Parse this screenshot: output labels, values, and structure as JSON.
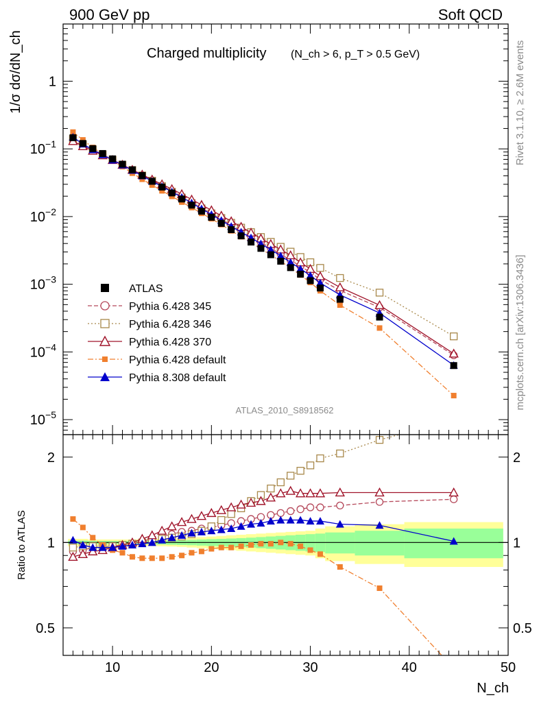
{
  "chart_data": {
    "type": "line",
    "header_left": "900 GeV pp",
    "header_right": "Soft QCD",
    "title_main": "Charged multiplicity",
    "title_sub": "(N_ch > 6, p_T > 0.5 GeV)",
    "ylabel": "1/σ dσ/dN_ch",
    "ratio_ylabel": "Ratio to ATLAS",
    "xlabel": "N_ch",
    "side_top": "Rivet 3.1.10, ≥ 2.6M events",
    "side_bottom": "mcplots.cern.ch [arXiv:1306.3436]",
    "analysis_tag": "ATLAS_2010_S8918562",
    "xlim": [
      5,
      50
    ],
    "ylim": [
      6e-06,
      7
    ],
    "yscale": "log",
    "ratio_ylim": [
      0.4,
      2.4
    ],
    "ratio_yscale": "log",
    "x_ticks": [
      10,
      20,
      30,
      40,
      50
    ],
    "y_ticks": [
      "10^-5",
      "10^-4",
      "10^-3",
      "10^-2",
      "10^-1",
      "1"
    ],
    "ratio_ticks": [
      0.5,
      1,
      2
    ],
    "x": [
      6,
      7,
      8,
      9,
      10,
      11,
      12,
      13,
      14,
      15,
      16,
      17,
      18,
      19,
      20,
      21,
      22,
      23,
      24,
      25,
      26,
      27,
      28,
      29,
      30,
      31,
      33,
      37,
      44.5
    ],
    "ratio_band_edges": [
      5.5,
      6.5,
      7.5,
      8.5,
      9.5,
      10.5,
      11.5,
      12.5,
      13.5,
      14.5,
      15.5,
      16.5,
      17.5,
      18.5,
      19.5,
      20.5,
      21.5,
      22.5,
      23.5,
      24.5,
      25.5,
      26.5,
      27.5,
      28.5,
      29.5,
      30.5,
      31.5,
      34.5,
      39.5,
      49.5
    ],
    "ratio_band_stat_sys": [
      0.03,
      0.03,
      0.025,
      0.025,
      0.025,
      0.025,
      0.025,
      0.025,
      0.028,
      0.03,
      0.032,
      0.035,
      0.04,
      0.045,
      0.05,
      0.055,
      0.06,
      0.065,
      0.07,
      0.075,
      0.08,
      0.085,
      0.09,
      0.095,
      0.1,
      0.12,
      0.14,
      0.16,
      0.18
    ],
    "ratio_band_stat": [
      0.015,
      0.015,
      0.012,
      0.012,
      0.012,
      0.012,
      0.012,
      0.012,
      0.014,
      0.016,
      0.018,
      0.02,
      0.022,
      0.025,
      0.028,
      0.03,
      0.033,
      0.036,
      0.04,
      0.045,
      0.05,
      0.055,
      0.06,
      0.065,
      0.07,
      0.075,
      0.085,
      0.1,
      0.12
    ],
    "series": [
      {
        "name": "ATLAS",
        "style": "data",
        "color": "#000000",
        "marker": "square-filled",
        "values": [
          0.1463,
          0.1201,
          0.1009,
          0.0854,
          0.0712,
          0.0594,
          0.0491,
          0.0404,
          0.0332,
          0.02727,
          0.02234,
          0.01818,
          0.01476,
          0.012,
          0.00977,
          0.00793,
          0.00641,
          0.00519,
          0.0042,
          0.00339,
          0.00273,
          0.00219,
          0.00176,
          0.00141,
          0.00113,
          0.00088,
          0.0006,
          0.000327,
          6.29e-05
        ]
      },
      {
        "name": "Pythia 6.428 345",
        "style": "dashed",
        "color": "#b5485a",
        "marker": "circle-open",
        "ratio": [
          0.93,
          0.94,
          0.96,
          0.96,
          0.97,
          0.98,
          0.99,
          1.01,
          1.03,
          1.05,
          1.07,
          1.09,
          1.1,
          1.12,
          1.13,
          1.15,
          1.17,
          1.19,
          1.21,
          1.23,
          1.25,
          1.27,
          1.29,
          1.31,
          1.33,
          1.33,
          1.35,
          1.39,
          1.42
        ]
      },
      {
        "name": "Pythia 6.428 346",
        "style": "dotted",
        "color": "#a8884a",
        "marker": "square-open",
        "ratio": [
          0.96,
          0.97,
          0.97,
          0.97,
          0.97,
          0.98,
          0.99,
          1.0,
          1.02,
          1.03,
          1.04,
          1.05,
          1.07,
          1.1,
          1.14,
          1.2,
          1.26,
          1.32,
          1.4,
          1.47,
          1.55,
          1.63,
          1.72,
          1.79,
          1.87,
          1.98,
          2.06,
          2.3,
          2.7
        ]
      },
      {
        "name": "Pythia 6.428 370",
        "style": "solid",
        "color": "#a0142a",
        "marker": "triangle-open",
        "ratio": [
          0.89,
          0.91,
          0.93,
          0.94,
          0.96,
          0.98,
          1.0,
          1.03,
          1.06,
          1.1,
          1.14,
          1.18,
          1.21,
          1.24,
          1.27,
          1.3,
          1.33,
          1.36,
          1.38,
          1.4,
          1.44,
          1.49,
          1.52,
          1.49,
          1.49,
          1.49,
          1.5,
          1.5,
          1.5
        ]
      },
      {
        "name": "Pythia 6.428 default",
        "style": "dashdot",
        "color": "#f07f2e",
        "marker": "square-filled-small",
        "ratio": [
          1.21,
          1.13,
          1.04,
          0.98,
          0.94,
          0.92,
          0.89,
          0.88,
          0.88,
          0.88,
          0.89,
          0.9,
          0.92,
          0.93,
          0.95,
          0.96,
          0.96,
          0.97,
          0.98,
          0.99,
          0.99,
          1.0,
          0.99,
          0.97,
          0.94,
          0.91,
          0.82,
          0.69,
          0.36
        ]
      },
      {
        "name": "Pythia 8.308 default",
        "style": "solid",
        "color": "#0000cc",
        "marker": "triangle-filled",
        "ratio": [
          1.02,
          0.98,
          0.96,
          0.96,
          0.96,
          0.97,
          0.98,
          0.99,
          1.0,
          1.02,
          1.04,
          1.06,
          1.08,
          1.09,
          1.1,
          1.11,
          1.12,
          1.14,
          1.16,
          1.17,
          1.19,
          1.2,
          1.2,
          1.2,
          1.19,
          1.19,
          1.16,
          1.15,
          1.01
        ]
      }
    ],
    "legend_placement": "lower-left of main panel",
    "colors": {
      "band_outer": "#ffff99",
      "band_inner": "#99ff99"
    }
  }
}
